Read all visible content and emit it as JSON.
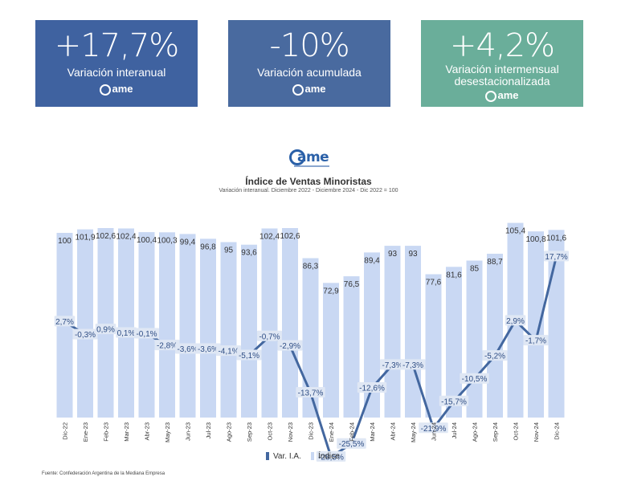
{
  "cards": [
    {
      "value": "+17,7%",
      "label": "Variación interanual",
      "logo": "ame",
      "color": "#3f62a0"
    },
    {
      "value": "-10%",
      "label": "Variación acumulada",
      "logo": "ame",
      "color": "#496a9f"
    },
    {
      "value": "+4,2%",
      "label_line1": "Variación intermensual",
      "label_line2": "desestacionalizada",
      "logo": "ame",
      "color": "#6aae9a"
    }
  ],
  "chart_logo": "ame",
  "chart_data": {
    "type": "bar+line",
    "title": "Índice de Ventas Minoristas",
    "subtitle": "Variación interanual. Diciembre 2022 - Diciembre 2024 - Dic 2022 = 100",
    "categories": [
      "Dic-22",
      "Ene-23",
      "Feb-23",
      "Mar-23",
      "Abr-23",
      "May-23",
      "Jun-23",
      "Jul-23",
      "Ago-23",
      "Sep-23",
      "Oct-23",
      "Nov-23",
      "Dic-23",
      "Ene-24",
      "Feb-24",
      "Mar-24",
      "Abr-24",
      "May-24",
      "Jun-24",
      "Jul-24",
      "Ago-24",
      "Sep-24",
      "Oct-24",
      "Nov-24",
      "Dic-24"
    ],
    "series": [
      {
        "name": "Índice",
        "type": "bar",
        "color": "#c9d8f3",
        "values": [
          100,
          101.9,
          102.6,
          102.4,
          100.4,
          100.3,
          99.4,
          96.8,
          95,
          93.6,
          102.4,
          102.6,
          86.3,
          72.9,
          76.5,
          89.4,
          93,
          93,
          77.6,
          81.6,
          85,
          88.7,
          105.4,
          100.8,
          101.6
        ],
        "labels": [
          "100",
          "101,9",
          "102,6",
          "102,4",
          "100,4",
          "100,3",
          "99,4",
          "96,8",
          "95",
          "93,6",
          "102,4",
          "102,6",
          "86,3",
          "72,9",
          "76,5",
          "89,4",
          "93",
          "93",
          "77,6",
          "81,6",
          "85",
          "88,7",
          "105,4",
          "100,8",
          "101,6"
        ]
      },
      {
        "name": "Var. I.A.",
        "type": "line",
        "color": "#43679f",
        "values": [
          2.7,
          -0.3,
          0.9,
          0.1,
          -0.1,
          -2.8,
          -3.6,
          -3.6,
          -4.1,
          -5.1,
          -0.7,
          -2.9,
          -13.7,
          -28.5,
          -25.5,
          -12.6,
          -7.3,
          -7.3,
          -21.9,
          -15.7,
          -10.5,
          -5.2,
          2.9,
          -1.7,
          17.7
        ],
        "labels": [
          "2,7%",
          "-0,3%",
          "0,9%",
          "0,1%",
          "-0,1%",
          "-2,8%",
          "-3,6%",
          "-3,6%",
          "-4,1%",
          "-5,1%",
          "-0,7%",
          "-2,9%",
          "-13,7%",
          "-28,5%",
          "-25,5%",
          "-12,6%",
          "-7,3%",
          "-7,3%",
          "-21,9%",
          "-15,7%",
          "-10,5%",
          "-5,2%",
          "2,9%",
          "-1,7%",
          "17,7%"
        ]
      }
    ],
    "legend": [
      "Var. I.A.",
      "Índice"
    ],
    "legend_position": "bottom"
  },
  "source": "Fuente: Confederación Argentina de la Mediana Empresa"
}
